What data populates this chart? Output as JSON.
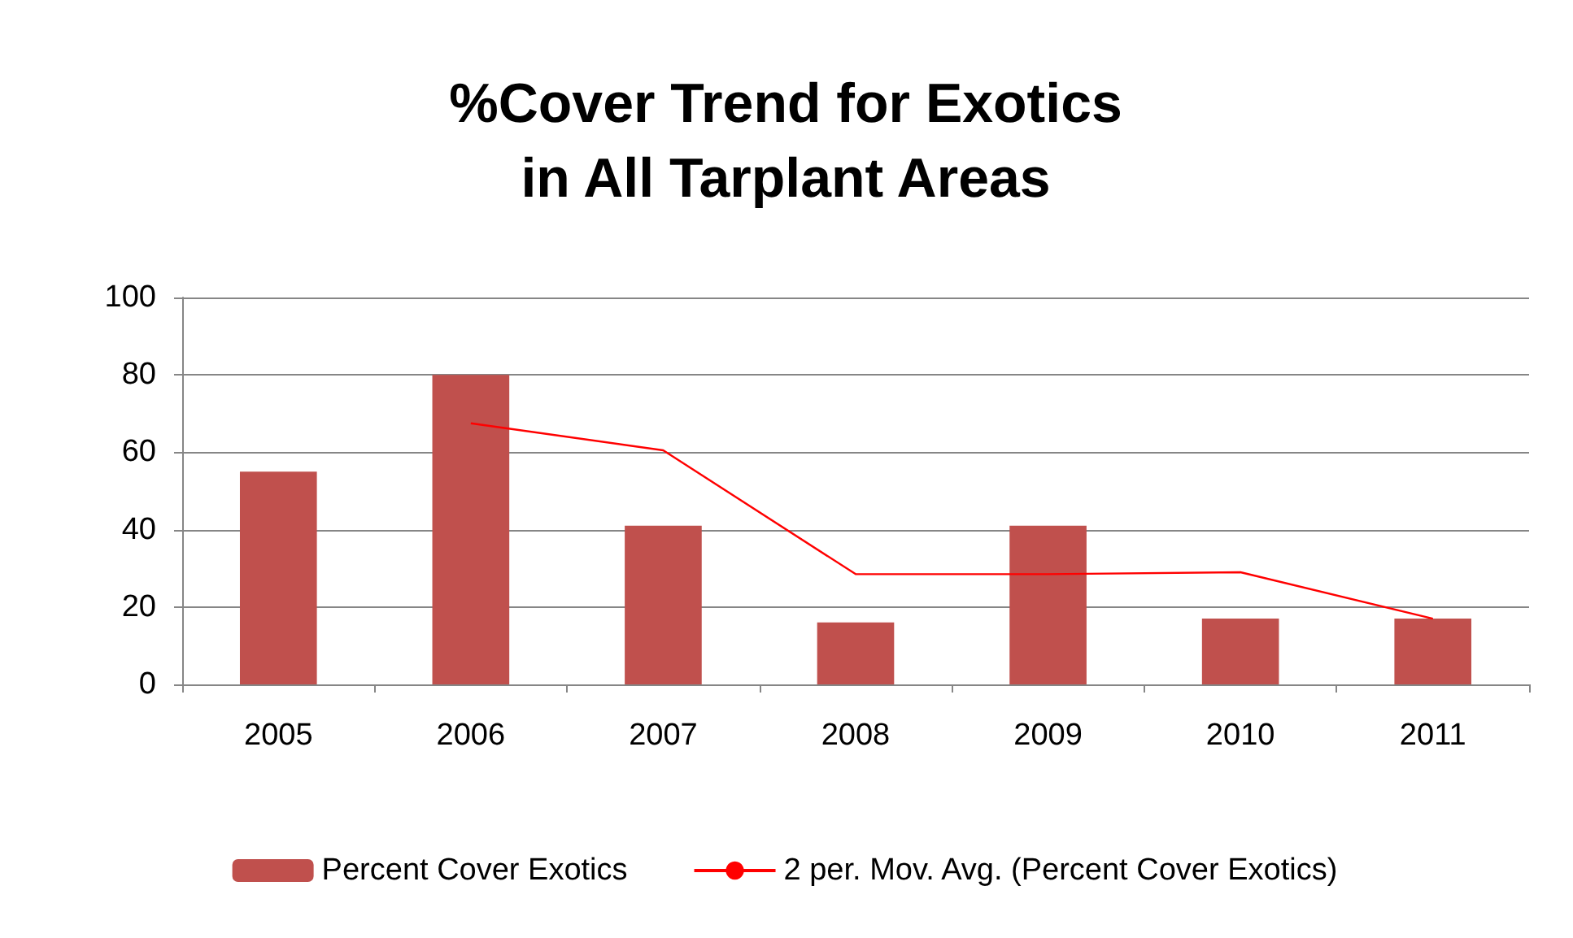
{
  "chart_data": {
    "type": "bar",
    "title": "%Cover Trend for Exotics\nin All Tarplant Areas",
    "categories": [
      "2005",
      "2006",
      "2007",
      "2008",
      "2009",
      "2010",
      "2011"
    ],
    "series": [
      {
        "name": "Percent Cover Exotics",
        "color": "#c0504d",
        "values": [
          55,
          80,
          41,
          16,
          41,
          17,
          17
        ]
      },
      {
        "name": "2 per. Mov. Avg. (Percent Cover Exotics)",
        "type": "line",
        "color": "#ff0000",
        "values": [
          null,
          67.5,
          60.5,
          28.5,
          28.5,
          29,
          17
        ]
      }
    ],
    "ylim": [
      0,
      100
    ],
    "yticks": [
      0,
      20,
      40,
      60,
      80,
      100
    ],
    "grid": "y",
    "legend": "bottom",
    "marker": "none",
    "line_style": "solid"
  }
}
